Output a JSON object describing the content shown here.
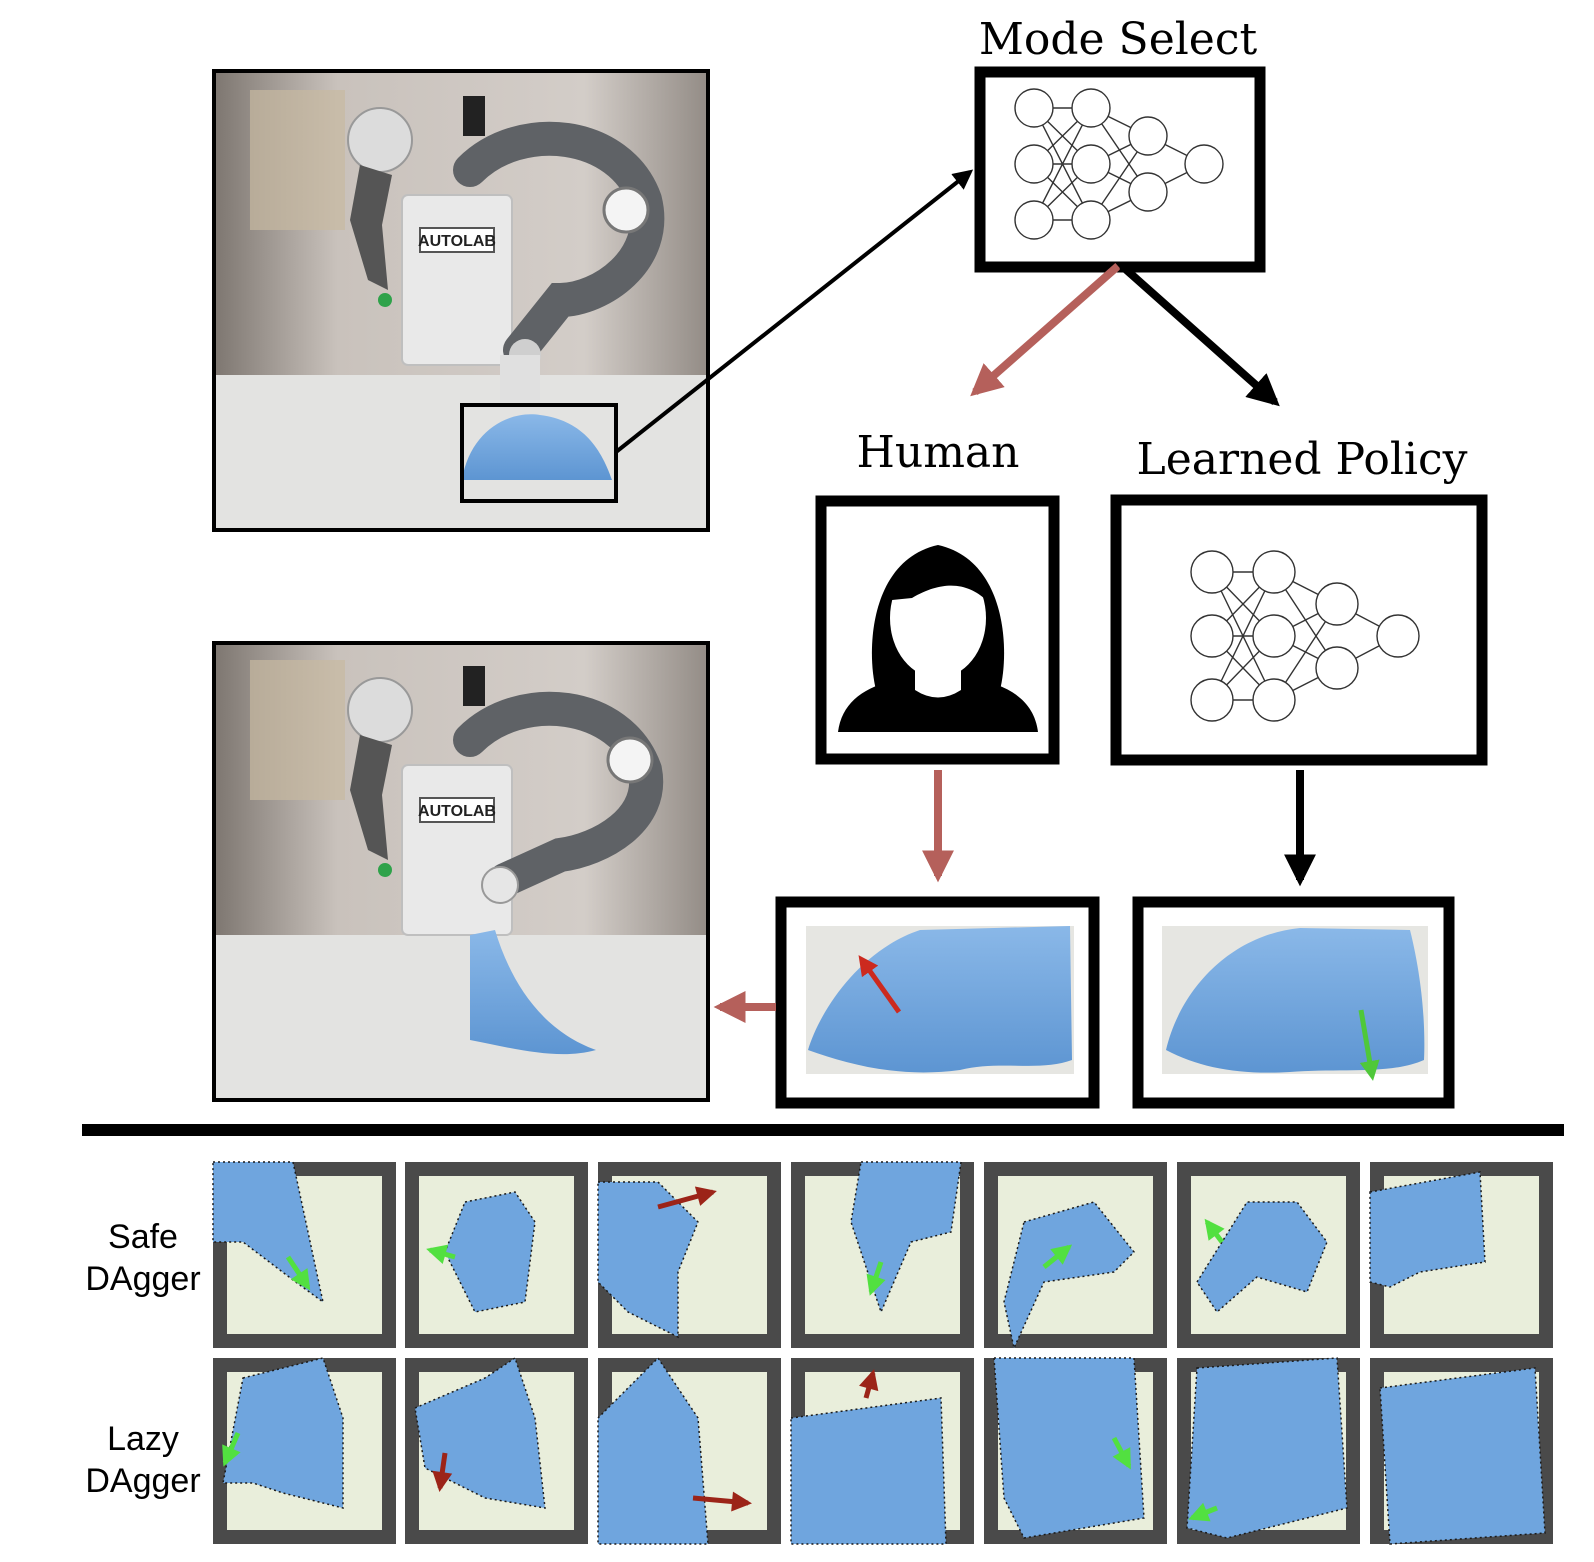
{
  "labels": {
    "mode_select": "Mode Select",
    "human": "Human",
    "learned_policy": "Learned Policy",
    "robot_logo": "AUTOLAB"
  },
  "rows": [
    {
      "label_line1": "Safe",
      "label_line2": "DAgger",
      "arrow_colors": [
        "green",
        "green",
        "red",
        "green",
        "green",
        "green",
        "none"
      ]
    },
    {
      "label_line1": "Lazy",
      "label_line2": "DAgger",
      "arrow_colors": [
        "green",
        "red",
        "red",
        "red",
        "green",
        "green",
        "none"
      ]
    }
  ],
  "colors": {
    "human_flow": "#b5605b",
    "policy_flow": "#000000",
    "cloth": "#6fa5de",
    "correction_arrow": "#cc2a1f",
    "policy_arrow": "#4fc83a",
    "tile_arrow_red": "#9c2418",
    "tile_arrow_green": "#52e040",
    "tile_frame": "#4a4a4a",
    "tile_bg": "#e9eedb"
  }
}
